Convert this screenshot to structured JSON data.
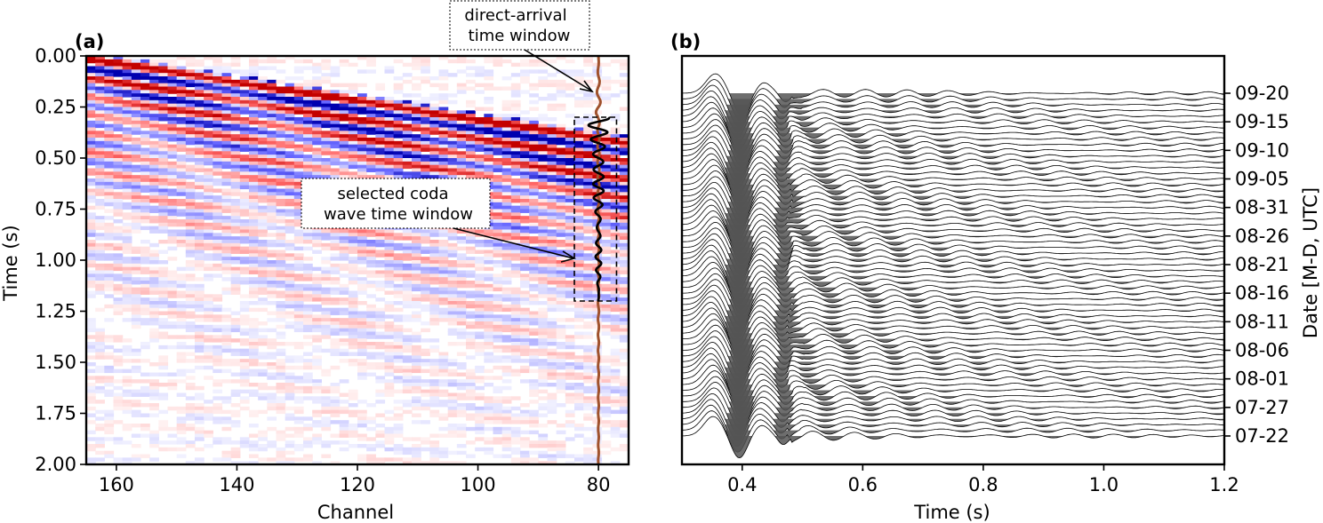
{
  "panel_a": {
    "label": "(a)",
    "xlabel": "Channel",
    "ylabel": "Time (s)",
    "annotations": {
      "direct": [
        "direct-arrival",
        "time window"
      ],
      "coda": [
        "selected coda",
        "wave time window"
      ]
    }
  },
  "panel_b": {
    "label": "(b)",
    "xlabel": "Time (s)",
    "ylabel": "Date [M-D, UTC]"
  },
  "colors": {
    "positive": "#cc0000",
    "negative": "#0000aa",
    "trace_direct": "#a0522d",
    "trace_coda": "#000000",
    "fill": "#555555"
  },
  "chart_data": [
    {
      "type": "heatmap",
      "title": "",
      "xlabel": "Channel",
      "ylabel": "Time (s)",
      "xlim": [
        165,
        75
      ],
      "ylim": [
        2.0,
        0.0
      ],
      "x_ticks": [
        160,
        140,
        120,
        100,
        80
      ],
      "y_ticks": [
        "0.00",
        "0.25",
        "0.50",
        "0.75",
        "1.00",
        "1.25",
        "1.50",
        "1.75",
        "2.00"
      ],
      "overlay_trace_channel": 80,
      "direct_arrival_window_s": [
        0.0,
        0.3
      ],
      "coda_window_box": {
        "channel": [
          84,
          77
        ],
        "time_s": [
          0.3,
          1.2
        ]
      },
      "colormap": "seismic (blue-white-red)"
    },
    {
      "type": "line",
      "title": "",
      "xlabel": "Time (s)",
      "ylabel": "Date [M-D, UTC]",
      "xlim": [
        0.3,
        1.2
      ],
      "x_ticks": [
        "0.4",
        "0.6",
        "0.8",
        "1.0",
        "1.2"
      ],
      "date_ticks": [
        "09-20",
        "09-15",
        "09-10",
        "09-05",
        "08-31",
        "08-26",
        "08-21",
        "08-16",
        "08-11",
        "08-06",
        "08-01",
        "07-27",
        "07-22"
      ],
      "trace_count": 61,
      "date_range": [
        "07-22",
        "09-20"
      ],
      "waveform_peaks_s": [
        0.35,
        0.395,
        0.43,
        0.47,
        0.53,
        0.6,
        0.69
      ],
      "fill": "negative lobes shaded gray"
    }
  ]
}
